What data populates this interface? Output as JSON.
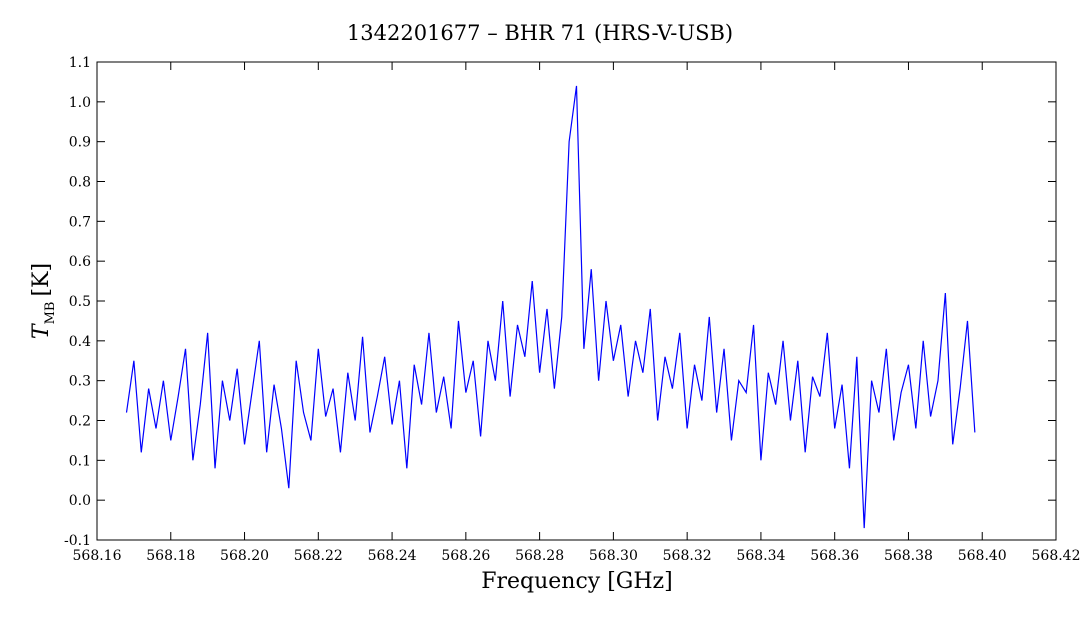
{
  "chart_data": {
    "type": "line",
    "title": "1342201677 – BHR 71 (HRS-V-USB)",
    "xlabel": "Frequency [GHz]",
    "ylabel": "T",
    "ylabel_sub": "MB",
    "ylabel_unit": "[K]",
    "x": [
      568.168,
      568.17,
      568.172,
      568.174,
      568.176,
      568.178,
      568.18,
      568.182,
      568.184,
      568.186,
      568.188,
      568.19,
      568.192,
      568.194,
      568.196,
      568.198,
      568.2,
      568.202,
      568.204,
      568.206,
      568.208,
      568.21,
      568.212,
      568.214,
      568.216,
      568.218,
      568.22,
      568.222,
      568.224,
      568.226,
      568.228,
      568.23,
      568.232,
      568.234,
      568.236,
      568.238,
      568.24,
      568.242,
      568.244,
      568.246,
      568.248,
      568.25,
      568.252,
      568.254,
      568.256,
      568.258,
      568.26,
      568.262,
      568.264,
      568.266,
      568.268,
      568.27,
      568.272,
      568.274,
      568.276,
      568.278,
      568.28,
      568.282,
      568.284,
      568.286,
      568.288,
      568.29,
      568.292,
      568.294,
      568.296,
      568.298,
      568.3,
      568.302,
      568.304,
      568.306,
      568.308,
      568.31,
      568.312,
      568.314,
      568.316,
      568.318,
      568.32,
      568.322,
      568.324,
      568.326,
      568.328,
      568.33,
      568.332,
      568.334,
      568.336,
      568.338,
      568.34,
      568.342,
      568.344,
      568.346,
      568.348,
      568.35,
      568.352,
      568.354,
      568.356,
      568.358,
      568.36,
      568.362,
      568.364,
      568.366,
      568.368,
      568.37,
      568.372,
      568.374,
      568.376,
      568.378,
      568.38,
      568.382,
      568.384,
      568.386,
      568.388,
      568.39,
      568.392,
      568.394,
      568.396,
      568.398
    ],
    "series": [
      {
        "color": "#0000ff",
        "values": [
          0.22,
          0.35,
          0.12,
          0.28,
          0.18,
          0.3,
          0.15,
          0.26,
          0.38,
          0.1,
          0.24,
          0.42,
          0.08,
          0.3,
          0.2,
          0.33,
          0.14,
          0.27,
          0.4,
          0.12,
          0.29,
          0.18,
          0.03,
          0.35,
          0.22,
          0.15,
          0.38,
          0.21,
          0.28,
          0.12,
          0.32,
          0.2,
          0.41,
          0.17,
          0.26,
          0.36,
          0.19,
          0.3,
          0.08,
          0.34,
          0.24,
          0.42,
          0.22,
          0.31,
          0.18,
          0.45,
          0.27,
          0.35,
          0.16,
          0.4,
          0.3,
          0.5,
          0.26,
          0.44,
          0.36,
          0.55,
          0.32,
          0.48,
          0.28,
          0.46,
          0.9,
          1.04,
          0.38,
          0.58,
          0.3,
          0.5,
          0.35,
          0.44,
          0.26,
          0.4,
          0.32,
          0.48,
          0.2,
          0.36,
          0.28,
          0.42,
          0.18,
          0.34,
          0.25,
          0.46,
          0.22,
          0.38,
          0.15,
          0.3,
          0.27,
          0.44,
          0.1,
          0.32,
          0.24,
          0.4,
          0.2,
          0.35,
          0.12,
          0.31,
          0.26,
          0.42,
          0.18,
          0.29,
          0.08,
          0.36,
          -0.07,
          0.3,
          0.22,
          0.38,
          0.15,
          0.27,
          0.34,
          0.18,
          0.4,
          0.21,
          0.3,
          0.52,
          0.14,
          0.28,
          0.45,
          0.17
        ]
      }
    ],
    "xlim": [
      568.16,
      568.42
    ],
    "xticks": [
      568.16,
      568.18,
      {
        "value": 568.2,
        "label": "568.20"
      },
      568.22,
      568.24,
      568.26,
      568.28,
      {
        "value": 568.3,
        "label": "568.30"
      },
      568.32,
      568.34,
      568.36,
      568.38,
      {
        "value": 568.4,
        "label": "568.40"
      },
      568.42
    ],
    "ylim": [
      -0.1,
      1.1
    ],
    "yticks": [
      -0.1,
      {
        "value": 0,
        "label": "0.0"
      },
      0.1,
      0.2,
      0.3,
      0.4,
      0.5,
      0.6,
      0.7,
      0.8,
      0.9,
      {
        "value": 1,
        "label": "1.0"
      },
      1.1
    ]
  }
}
